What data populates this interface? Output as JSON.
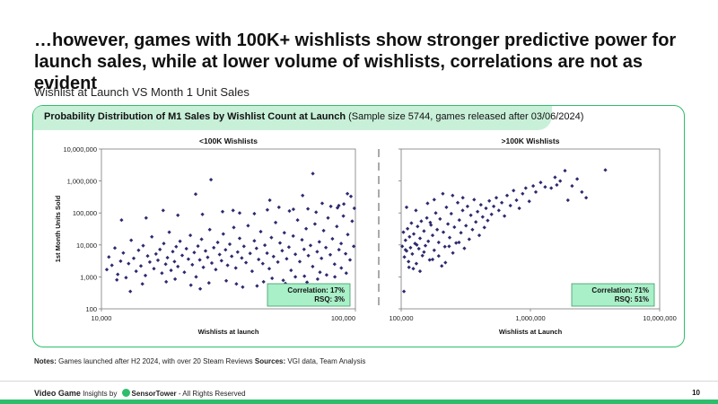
{
  "title": "…however, games with 100K+ wishlists show stronger predictive power for launch sales, while at lower volume of wishlists, correlations are not as evident",
  "subtitle": "Wishlist at Launch VS Month 1 Unit Sales",
  "panel": {
    "header_bold": "Probability Distribution of M1 Sales by Wishlist Count at Launch",
    "header_rest": " (Sample size 5744, games released after 03/06/2024)"
  },
  "notes": {
    "label1": "Notes:",
    "text1": " Games launched after H2 2024, with over 20 Steam Reviews ",
    "label2": "Sources:",
    "text2": " VGI data, Team Analysis"
  },
  "footer": {
    "brand": "Video Game",
    "insights_by": " Insights by ",
    "sensortower": "SensorTower",
    "rights": " - All Rights Reserved",
    "page": "10"
  },
  "colors": {
    "accent": "#2ebd6b",
    "marker": "#2d2a6e",
    "badge_bg": "#a9efc8"
  },
  "chart_data": [
    {
      "type": "scatter",
      "title": "<100K Wishlists",
      "xlabel": "Wishlists at launch",
      "ylabel": "1st Month Units Sold",
      "xscale": "log",
      "yscale": "log",
      "xlim": [
        10000,
        100000
      ],
      "ylim": [
        100,
        10000000
      ],
      "xticks": [
        "10,000",
        "100,000"
      ],
      "yticks": [
        "100",
        "1,000",
        "10,000",
        "100,000",
        "1,000,000",
        "10,000,000"
      ],
      "annotation": {
        "correlation_label": "Correlation:",
        "correlation": "17%",
        "rsq_label": "RSQ:",
        "rsq": "3%"
      },
      "points": [
        [
          10500,
          1700
        ],
        [
          10700,
          4200
        ],
        [
          11000,
          2300
        ],
        [
          11300,
          8000
        ],
        [
          11600,
          1200
        ],
        [
          11900,
          3100
        ],
        [
          12200,
          5600
        ],
        [
          12500,
          950
        ],
        [
          12800,
          2600
        ],
        [
          13100,
          14000
        ],
        [
          13400,
          3800
        ],
        [
          13700,
          1500
        ],
        [
          14000,
          6800
        ],
        [
          14300,
          2200
        ],
        [
          14600,
          9500
        ],
        [
          14900,
          1100
        ],
        [
          15200,
          4500
        ],
        [
          15500,
          2900
        ],
        [
          15800,
          18000
        ],
        [
          16100,
          1800
        ],
        [
          16400,
          5200
        ],
        [
          16700,
          3300
        ],
        [
          17000,
          7200
        ],
        [
          17300,
          1300
        ],
        [
          17600,
          11000
        ],
        [
          17900,
          2500
        ],
        [
          18200,
          4000
        ],
        [
          18500,
          25000
        ],
        [
          18800,
          1600
        ],
        [
          19100,
          6200
        ],
        [
          19400,
          3000
        ],
        [
          19700,
          8800
        ],
        [
          20000,
          2100
        ],
        [
          20400,
          13000
        ],
        [
          20800,
          4700
        ],
        [
          21200,
          1400
        ],
        [
          21600,
          7600
        ],
        [
          22000,
          3600
        ],
        [
          22400,
          20000
        ],
        [
          22800,
          2400
        ],
        [
          23200,
          5800
        ],
        [
          23600,
          1000
        ],
        [
          24000,
          9200
        ],
        [
          24400,
          3400
        ],
        [
          24800,
          15000
        ],
        [
          25200,
          2000
        ],
        [
          25700,
          6500
        ],
        [
          26200,
          4100
        ],
        [
          26700,
          30000
        ],
        [
          27200,
          2700
        ],
        [
          27700,
          8200
        ],
        [
          28200,
          1700
        ],
        [
          28700,
          12000
        ],
        [
          29200,
          5000
        ],
        [
          29700,
          3200
        ],
        [
          30200,
          22000
        ],
        [
          30800,
          7000
        ],
        [
          31400,
          2300
        ],
        [
          32000,
          10500
        ],
        [
          32600,
          4400
        ],
        [
          33200,
          35000
        ],
        [
          33800,
          1900
        ],
        [
          34400,
          6000
        ],
        [
          35000,
          16000
        ],
        [
          35700,
          3900
        ],
        [
          36400,
          9000
        ],
        [
          37100,
          2800
        ],
        [
          37800,
          40000
        ],
        [
          38500,
          5400
        ],
        [
          39200,
          1500
        ],
        [
          40000,
          13500
        ],
        [
          40800,
          7800
        ],
        [
          41600,
          3500
        ],
        [
          42400,
          26000
        ],
        [
          43200,
          2600
        ],
        [
          44000,
          9800
        ],
        [
          44900,
          5500
        ],
        [
          45800,
          1800
        ],
        [
          46700,
          17000
        ],
        [
          47600,
          4300
        ],
        [
          48500,
          50000
        ],
        [
          49500,
          2900
        ],
        [
          50500,
          11500
        ],
        [
          51500,
          6600
        ],
        [
          52500,
          24000
        ],
        [
          53600,
          3700
        ],
        [
          54700,
          8500
        ],
        [
          55800,
          1600
        ],
        [
          56900,
          19000
        ],
        [
          58000,
          5100
        ],
        [
          59200,
          60000
        ],
        [
          60400,
          3000
        ],
        [
          61600,
          14500
        ],
        [
          62800,
          7300
        ],
        [
          64000,
          32000
        ],
        [
          65300,
          4600
        ],
        [
          66600,
          9600
        ],
        [
          67900,
          2100
        ],
        [
          69300,
          45000
        ],
        [
          70700,
          6100
        ],
        [
          72100,
          12500
        ],
        [
          73500,
          3800
        ],
        [
          75000,
          28000
        ],
        [
          76500,
          8300
        ],
        [
          78000,
          70000
        ],
        [
          79600,
          4900
        ],
        [
          81200,
          15500
        ],
        [
          82800,
          2500
        ],
        [
          84500,
          38000
        ],
        [
          86200,
          7100
        ],
        [
          87900,
          11000
        ],
        [
          89700,
          80000
        ],
        [
          91500,
          5300
        ],
        [
          93300,
          21000
        ],
        [
          95200,
          3400
        ],
        [
          97100,
          55000
        ],
        [
          98500,
          9000
        ],
        [
          99000,
          140000
        ],
        [
          96000,
          330000
        ],
        [
          93000,
          400000
        ],
        [
          68000,
          1700000
        ],
        [
          46000,
          250000
        ],
        [
          27000,
          1100000
        ],
        [
          23500,
          390000
        ],
        [
          62000,
          350000
        ],
        [
          74000,
          200000
        ],
        [
          86000,
          170000
        ],
        [
          57000,
          130000
        ],
        [
          33000,
          120000
        ],
        [
          17500,
          120000
        ],
        [
          12000,
          60000
        ],
        [
          15000,
          70000
        ],
        [
          20000,
          85000
        ],
        [
          25000,
          90000
        ],
        [
          30000,
          110000
        ],
        [
          35000,
          100000
        ],
        [
          40000,
          95000
        ],
        [
          45000,
          125000
        ],
        [
          50000,
          150000
        ],
        [
          55000,
          115000
        ],
        [
          65000,
          135000
        ],
        [
          70000,
          105000
        ],
        [
          80000,
          160000
        ],
        [
          85000,
          145000
        ],
        [
          90000,
          190000
        ],
        [
          11500,
          800
        ],
        [
          14500,
          600
        ],
        [
          18000,
          700
        ],
        [
          22500,
          550
        ],
        [
          26500,
          650
        ],
        [
          31000,
          750
        ],
        [
          36000,
          480
        ],
        [
          41000,
          520
        ],
        [
          47000,
          900
        ],
        [
          52000,
          780
        ],
        [
          58000,
          1000
        ],
        [
          64500,
          680
        ],
        [
          71000,
          850
        ],
        [
          77000,
          1150
        ],
        [
          83000,
          1000
        ],
        [
          92000,
          1300
        ],
        [
          13000,
          350
        ],
        [
          19500,
          850
        ],
        [
          24500,
          420
        ],
        [
          34000,
          600
        ],
        [
          43500,
          700
        ],
        [
          53000,
          620
        ],
        [
          63000,
          1050
        ],
        [
          72500,
          1400
        ],
        [
          88000,
          1900
        ]
      ]
    },
    {
      "type": "scatter",
      "title": ">100K Wishlists",
      "xlabel": "Wishlists at Launch",
      "ylabel": "",
      "xscale": "log",
      "yscale": "log",
      "xlim": [
        100000,
        10000000
      ],
      "ylim": [
        100,
        10000000
      ],
      "xticks": [
        "100,000",
        "1,000,000",
        "10,000,000"
      ],
      "annotation": {
        "correlation_label": "Correlation:",
        "correlation": "71%",
        "rsq_label": "RSQ:",
        "rsq": "51%"
      },
      "points": [
        [
          102000,
          9000
        ],
        [
          104000,
          25000
        ],
        [
          106000,
          4200
        ],
        [
          108000,
          14000
        ],
        [
          110000,
          6500
        ],
        [
          112000,
          32000
        ],
        [
          114000,
          3000
        ],
        [
          116000,
          18000
        ],
        [
          118000,
          8200
        ],
        [
          120000,
          48000
        ],
        [
          122000,
          5200
        ],
        [
          125000,
          22000
        ],
        [
          128000,
          11000
        ],
        [
          131000,
          2600
        ],
        [
          134000,
          38000
        ],
        [
          137000,
          7600
        ],
        [
          140000,
          16000
        ],
        [
          143000,
          55000
        ],
        [
          146000,
          4600
        ],
        [
          150000,
          27000
        ],
        [
          154000,
          9500
        ],
        [
          158000,
          70000
        ],
        [
          162000,
          13000
        ],
        [
          166000,
          3400
        ],
        [
          170000,
          42000
        ],
        [
          175000,
          20000
        ],
        [
          180000,
          6800
        ],
        [
          185000,
          100000
        ],
        [
          190000,
          30000
        ],
        [
          195000,
          12000
        ],
        [
          200000,
          65000
        ],
        [
          206000,
          2200
        ],
        [
          212000,
          25000
        ],
        [
          218000,
          8800
        ],
        [
          224000,
          150000
        ],
        [
          230000,
          45000
        ],
        [
          237000,
          17000
        ],
        [
          244000,
          95000
        ],
        [
          251000,
          5600
        ],
        [
          258000,
          36000
        ],
        [
          266000,
          11500
        ],
        [
          274000,
          210000
        ],
        [
          282000,
          60000
        ],
        [
          290000,
          24000
        ],
        [
          299000,
          120000
        ],
        [
          308000,
          7800
        ],
        [
          317000,
          40000
        ],
        [
          326000,
          160000
        ],
        [
          336000,
          15000
        ],
        [
          346000,
          85000
        ],
        [
          356000,
          30000
        ],
        [
          367000,
          260000
        ],
        [
          378000,
          52000
        ],
        [
          390000,
          110000
        ],
        [
          402000,
          20000
        ],
        [
          414000,
          180000
        ],
        [
          427000,
          75000
        ],
        [
          440000,
          35000
        ],
        [
          453000,
          140000
        ],
        [
          467000,
          58000
        ],
        [
          481000,
          240000
        ],
        [
          500000,
          90000
        ],
        [
          520000,
          160000
        ],
        [
          545000,
          300000
        ],
        [
          570000,
          120000
        ],
        [
          600000,
          210000
        ],
        [
          630000,
          80000
        ],
        [
          660000,
          350000
        ],
        [
          700000,
          170000
        ],
        [
          740000,
          500000
        ],
        [
          780000,
          250000
        ],
        [
          820000,
          140000
        ],
        [
          870000,
          400000
        ],
        [
          920000,
          600000
        ],
        [
          980000,
          230000
        ],
        [
          1050000,
          700000
        ],
        [
          1100000,
          450000
        ],
        [
          1200000,
          900000
        ],
        [
          1300000,
          650000
        ],
        [
          1450000,
          600000
        ],
        [
          1550000,
          1300000
        ],
        [
          1600000,
          750000
        ],
        [
          1700000,
          1000000
        ],
        [
          1850000,
          2100000
        ],
        [
          1950000,
          250000
        ],
        [
          2100000,
          700000
        ],
        [
          2300000,
          1150000
        ],
        [
          2500000,
          450000
        ],
        [
          2700000,
          300000
        ],
        [
          3800000,
          2200000
        ],
        [
          110000,
          150000
        ],
        [
          130000,
          120000
        ],
        [
          160000,
          200000
        ],
        [
          180000,
          260000
        ],
        [
          210000,
          400000
        ],
        [
          250000,
          350000
        ],
        [
          300000,
          300000
        ],
        [
          115000,
          2000
        ],
        [
          140000,
          1500
        ],
        [
          175000,
          3500
        ],
        [
          105000,
          350
        ],
        [
          220000,
          2800
        ],
        [
          124000,
          1800
        ],
        [
          150000,
          6000
        ],
        [
          108000,
          7000
        ],
        [
          132000,
          10000
        ],
        [
          168000,
          50000
        ],
        [
          195000,
          4500
        ],
        [
          235000,
          9000
        ],
        [
          280000,
          12000
        ]
      ]
    }
  ]
}
